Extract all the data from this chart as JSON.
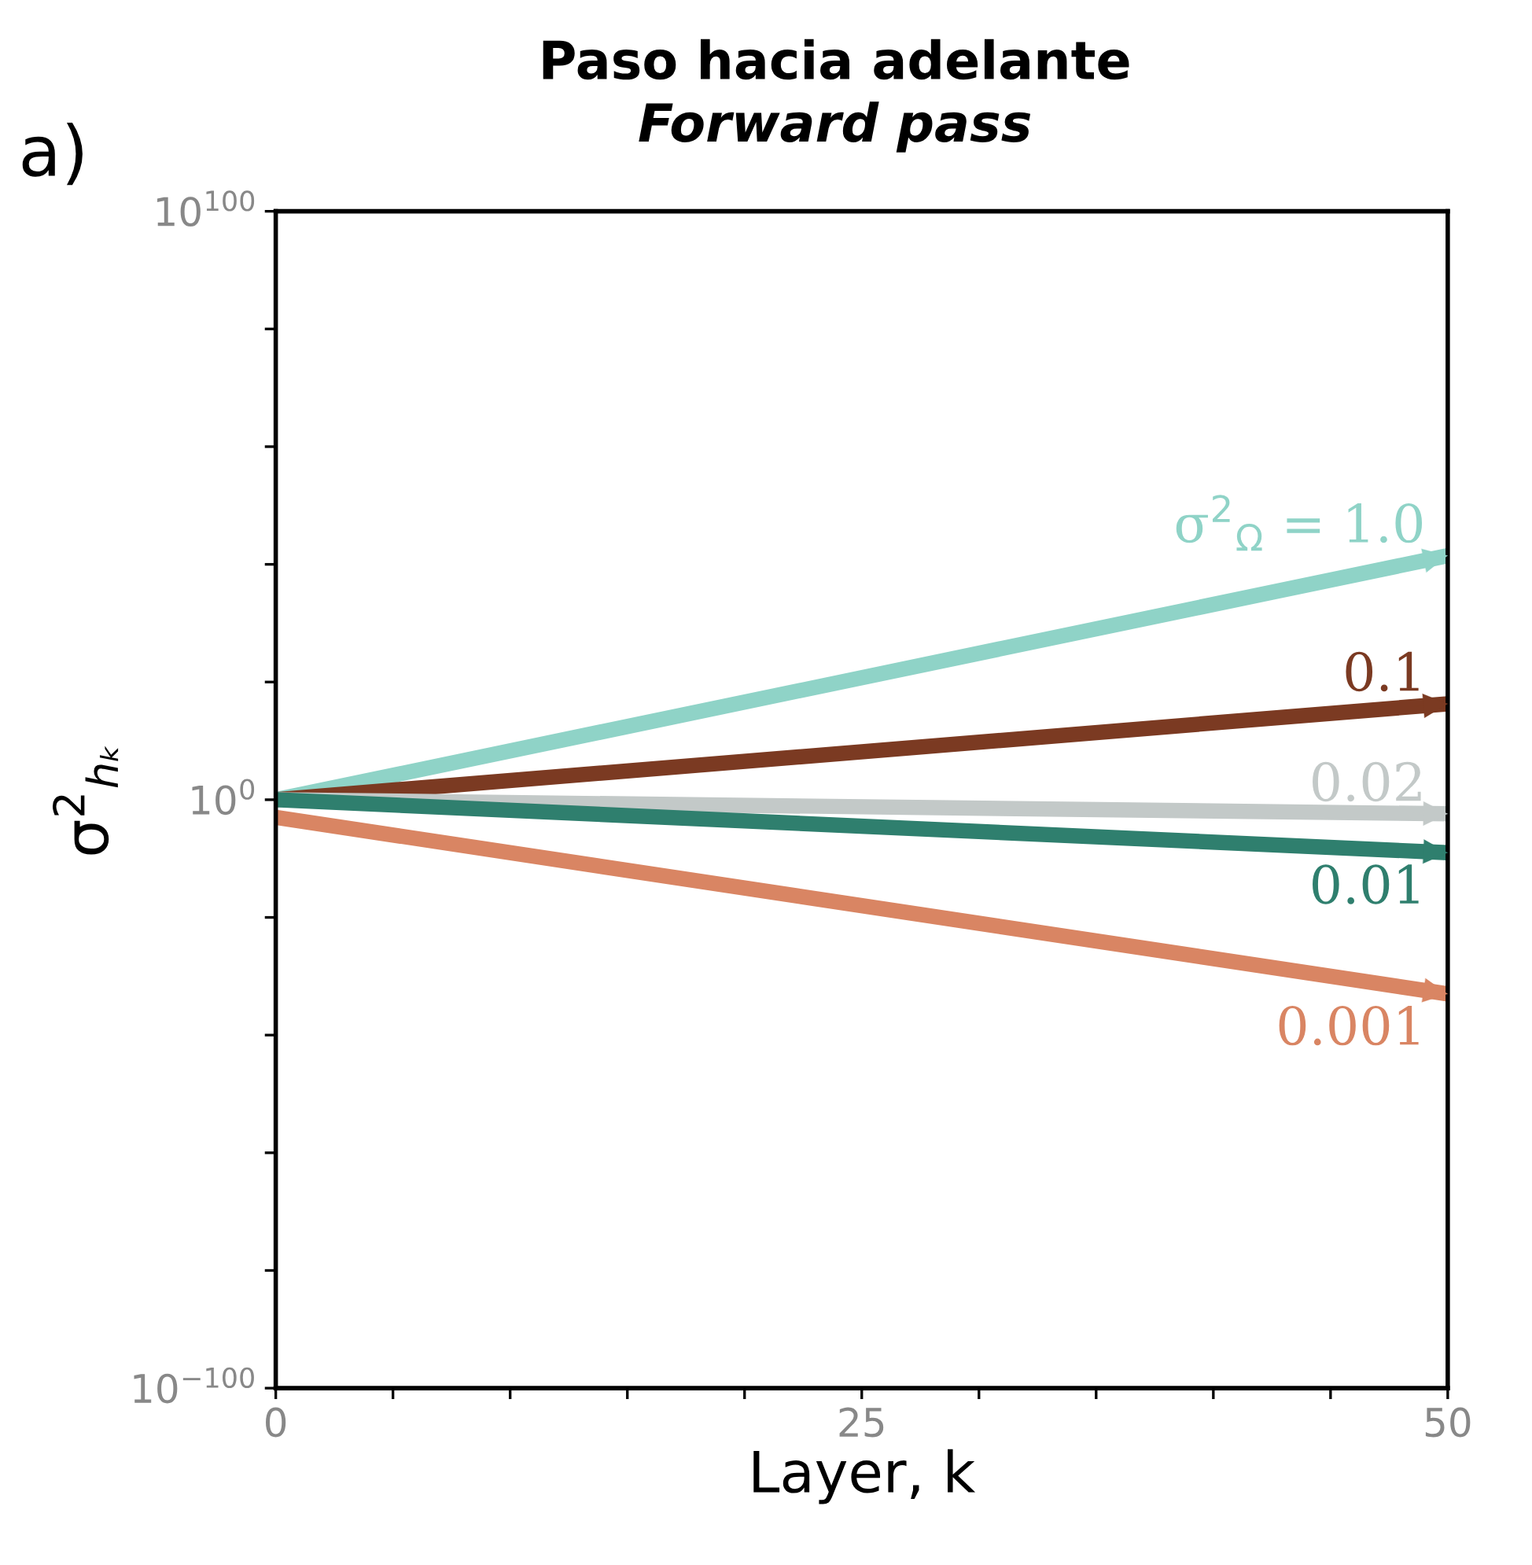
{
  "chart_data": {
    "type": "line",
    "title": "Paso hacia adelante",
    "subtitle": "Forward pass",
    "xlabel": "Layer, k",
    "ylabel": "σ$^{2}$$_{hₖ}$",
    "annotations": [
      "a)"
    ],
    "log": "y",
    "grid": false,
    "legend": "right",
    "marker": "none",
    "line_style": "solid",
    "x": [
      0,
      50
    ],
    "series": [
      {
        "name": "σ$^{2}$$_{Ω}$ = 1.0",
        "color": "#8fd3c7",
        "values": [
          1,
          3e+41
        ]
      },
      {
        "name": "0.1",
        "color": "#7b3a22",
        "values": [
          1,
          2e+16
        ]
      },
      {
        "name": "0.02",
        "color": "#c3c9c8",
        "values": [
          1,
          0.004
        ]
      },
      {
        "name": "0.01",
        "color": "#2f7f6e",
        "values": [
          1,
          1e-09
        ]
      },
      {
        "name": "0.001",
        "color": "#d98563",
        "values": [
          0.001,
          1e-33
        ]
      }
    ],
    "xlim": [
      0,
      50
    ],
    "xticks": [
      0,
      {
        "value": 5,
        "label": null
      },
      {
        "value": 10,
        "label": null
      },
      {
        "value": 15,
        "label": null
      },
      {
        "value": 20,
        "label": null
      },
      25,
      {
        "value": 30,
        "label": null
      },
      {
        "value": 35,
        "label": null
      },
      {
        "value": 40,
        "label": null
      },
      {
        "value": 45,
        "label": null
      },
      50
    ],
    "ylim": [
      1e-100,
      1e+100
    ],
    "yticks": [
      {
        "value": 1e-100,
        "label": "10$^{−100}$"
      },
      {
        "value": 1e-80,
        "label": null
      },
      {
        "value": 1e-60,
        "label": null
      },
      {
        "value": 1e-40,
        "label": null
      },
      {
        "value": 1e-20,
        "label": null
      },
      {
        "value": 1,
        "label": "10$^{0}$"
      },
      {
        "value": 1e+20,
        "label": null
      },
      {
        "value": 1e+40,
        "label": null
      },
      {
        "value": 1e+60,
        "label": null
      },
      {
        "value": 1e+80,
        "label": null
      },
      {
        "value": 1e+100,
        "label": "10$^{100}$"
      }
    ]
  }
}
